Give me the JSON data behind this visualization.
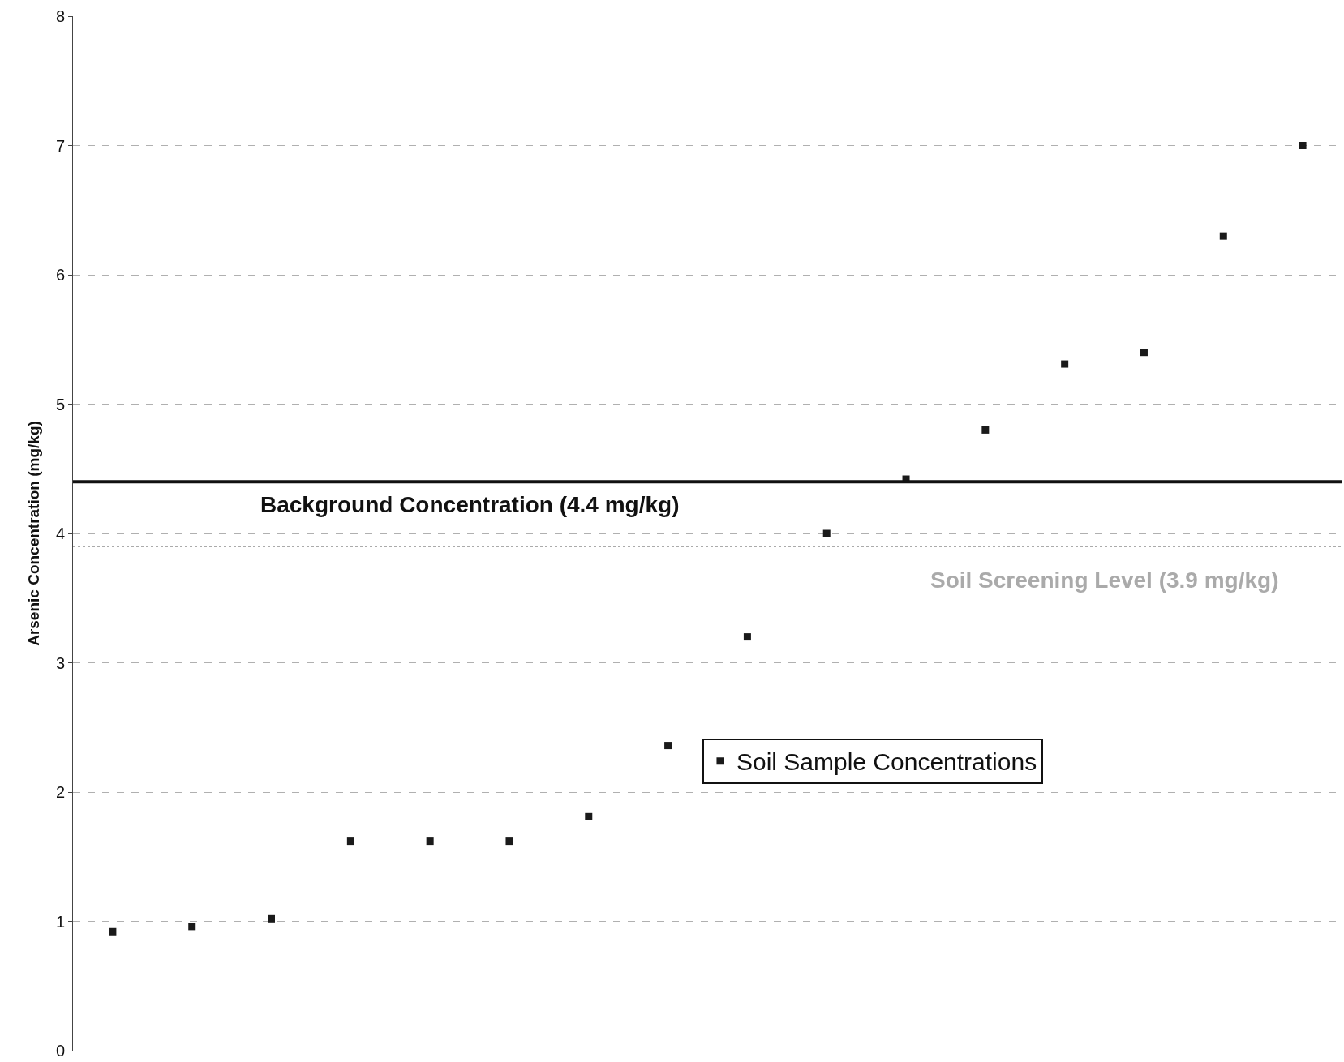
{
  "chart_data": {
    "type": "scatter",
    "ylabel": "Arsenic Concentration (mg/kg)",
    "categories": [
      null,
      null,
      null,
      null,
      null,
      null,
      null,
      null,
      null,
      null,
      null,
      null,
      null,
      null,
      null,
      null
    ],
    "series": [
      {
        "name": "Soil Sample Concentrations",
        "color": "#1a1a1a",
        "values": [
          0.92,
          0.96,
          1.02,
          1.62,
          1.62,
          1.62,
          1.81,
          2.36,
          3.2,
          4.0,
          4.42,
          4.8,
          5.31,
          5.4,
          6.3,
          7.0
        ]
      }
    ],
    "marker": "square",
    "ylim": [
      0,
      8
    ],
    "yticks": [
      0,
      1,
      2,
      3,
      4,
      5,
      6,
      7,
      8
    ],
    "grid": "y",
    "tick_labels": "y",
    "legend": "center",
    "ref_lines": [
      {
        "axis": "y",
        "value": 4.4,
        "label": "Background Concentration (4.4 mg/kg)",
        "color": "#111111",
        "line_style": "solid"
      },
      {
        "axis": "y",
        "value": 3.9,
        "label": "Soil Screening Level (3.9 mg/kg)",
        "color": "#aaaaaa",
        "line_style": "dotted"
      }
    ]
  }
}
